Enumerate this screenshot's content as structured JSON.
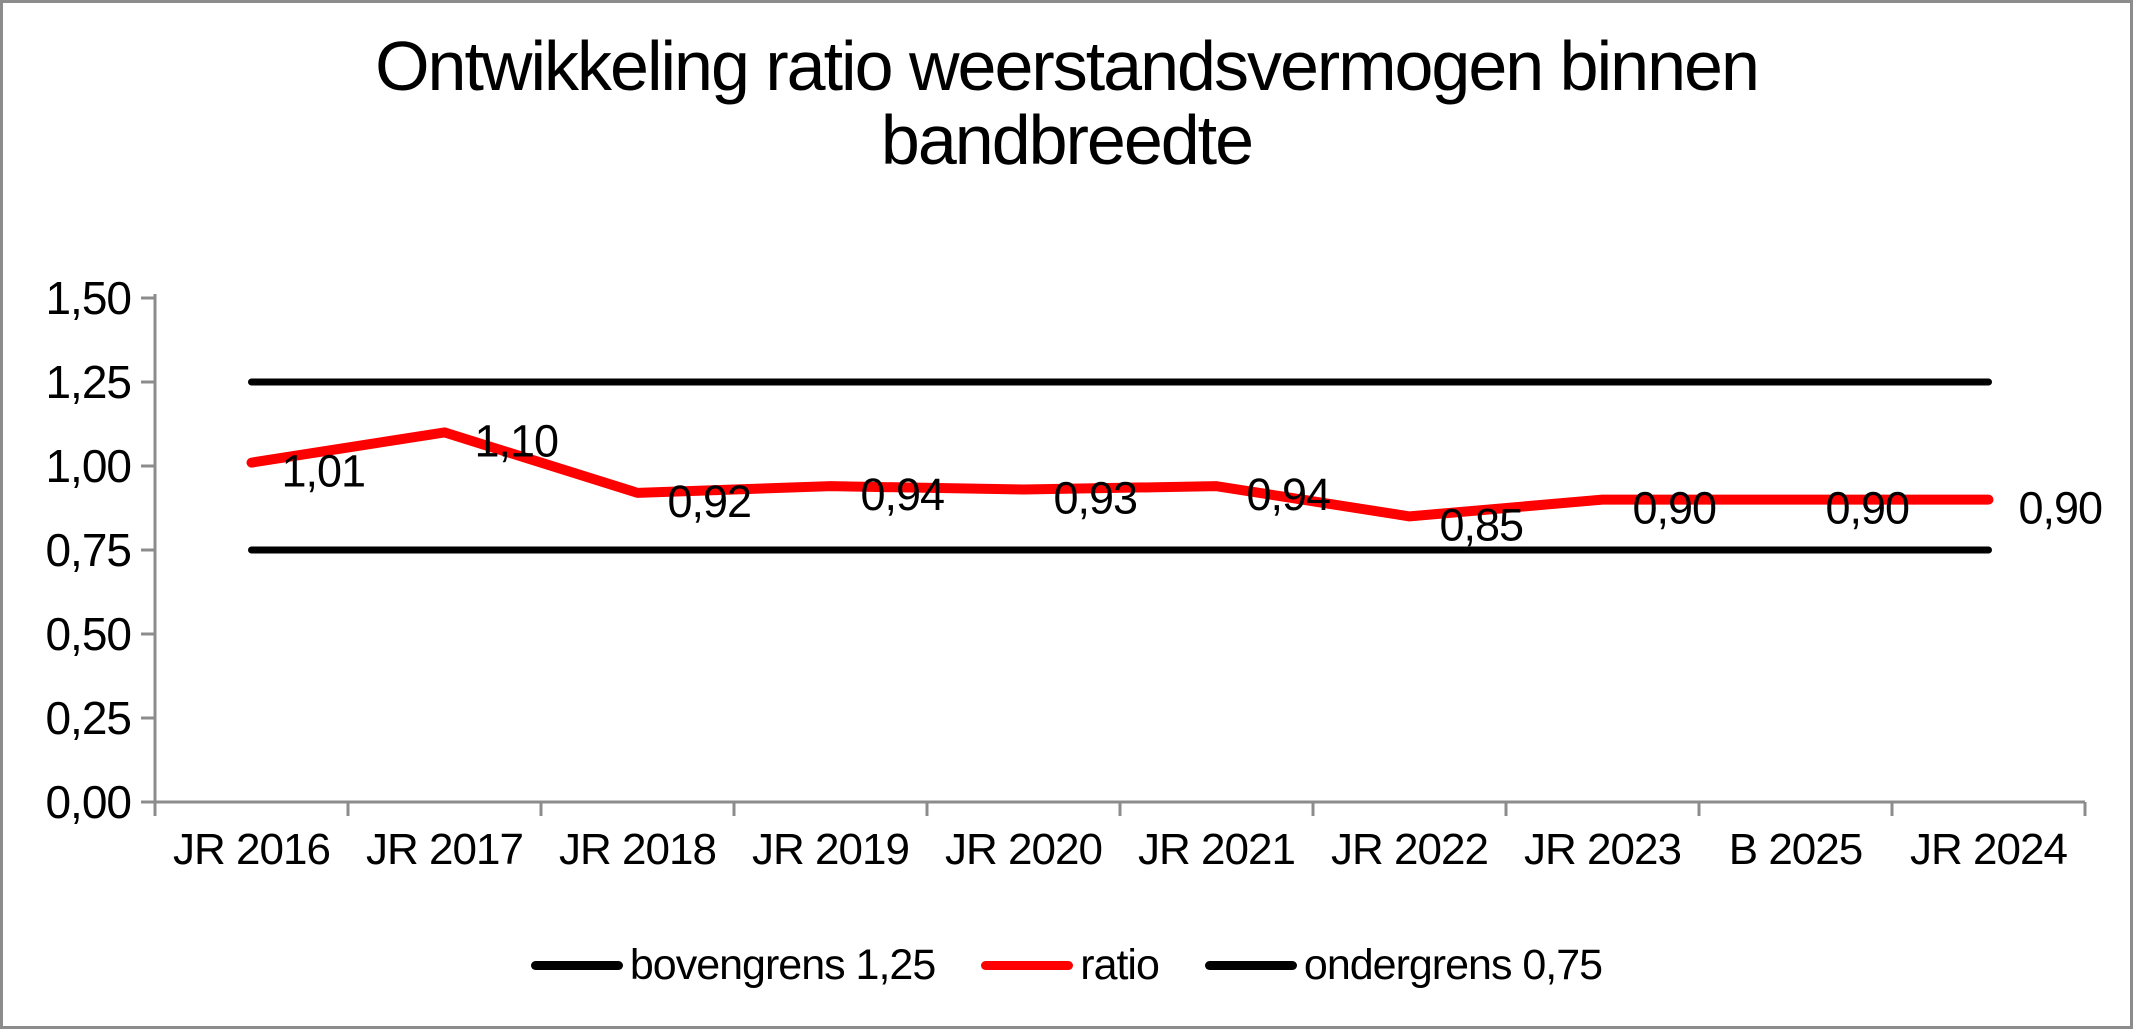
{
  "title": {
    "line1": "Ontwikkeling ratio weerstandsvermogen binnen",
    "line2": "bandbreedte",
    "full": "Ontwikkeling ratio weerstandsvermogen binnen bandbreedte"
  },
  "colors": {
    "ratio_line": "#ff0000",
    "bound_line": "#000000",
    "axis": "#8c8c8c",
    "frame_border": "#8c8c8c",
    "text": "#000000",
    "background": "#ffffff"
  },
  "chart_data": {
    "type": "line",
    "title": "Ontwikkeling ratio weerstandsvermogen binnen bandbreedte",
    "categories": [
      "JR 2016",
      "JR 2017",
      "JR 2018",
      "JR 2019",
      "JR 2020",
      "JR 2021",
      "JR 2022",
      "JR 2023",
      "B 2025",
      "JR 2024"
    ],
    "series": [
      {
        "name": "bovengrens 1,25",
        "color": "#000000",
        "stroke_width": 7,
        "values": [
          1.25,
          1.25,
          1.25,
          1.25,
          1.25,
          1.25,
          1.25,
          1.25,
          1.25,
          1.25
        ],
        "data_labels": null
      },
      {
        "name": "ratio",
        "color": "#ff0000",
        "stroke_width": 10,
        "values": [
          1.01,
          1.1,
          0.92,
          0.94,
          0.93,
          0.94,
          0.85,
          0.9,
          0.9,
          0.9
        ],
        "data_labels": [
          "1,01",
          "1,10",
          "0,92",
          "0,94",
          "0,93",
          "0,94",
          "0,85",
          "0,90",
          "0,90",
          "0,90"
        ]
      },
      {
        "name": "ondergrens 0,75",
        "color": "#000000",
        "stroke_width": 7,
        "values": [
          0.75,
          0.75,
          0.75,
          0.75,
          0.75,
          0.75,
          0.75,
          0.75,
          0.75,
          0.75
        ],
        "data_labels": null
      }
    ],
    "y_axis": {
      "min": 0,
      "max": 1.5,
      "step": 0.25,
      "tick_labels": [
        "0,00",
        "0,25",
        "0,50",
        "0,75",
        "1,00",
        "1,25",
        "1,50"
      ]
    },
    "x_axis": {
      "label": ""
    },
    "grid": "off",
    "legend": {
      "position": "bottom",
      "entries": [
        "bovengrens 1,25",
        "ratio",
        "ondergrens 0,75"
      ]
    }
  }
}
